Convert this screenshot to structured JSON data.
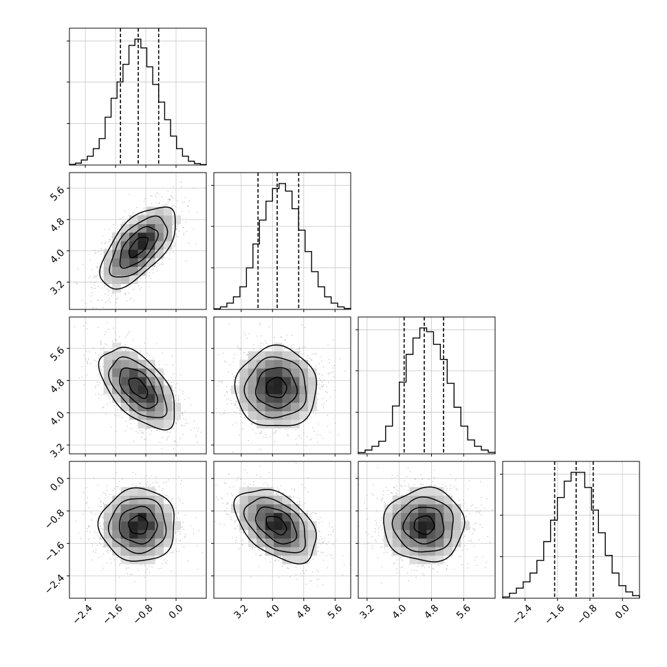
{
  "chart_data": {
    "type": "corner",
    "description": "Corner plot of a 4-parameter posterior sample: 1D histograms on the diagonal with dashed quantile lines, 2D scatter + binned density + contours below the diagonal.",
    "grid": true,
    "axis_labels": [
      "",
      "",
      "",
      ""
    ],
    "params": [
      {
        "ticks": [
          -2.4,
          -1.6,
          -0.8,
          0.0
        ],
        "range": [
          -2.82,
          0.8
        ],
        "quantiles": [
          -1.47,
          -1.0,
          -0.46
        ],
        "hist": [
          0.005,
          0.015,
          0.04,
          0.07,
          0.13,
          0.21,
          0.38,
          0.53,
          0.66,
          0.8,
          0.95,
          1.0,
          0.93,
          0.78,
          0.64,
          0.5,
          0.36,
          0.23,
          0.13,
          0.07,
          0.03,
          0.012,
          0.004
        ]
      },
      {
        "ticks": [
          3.2,
          4.0,
          4.8,
          5.6
        ],
        "range": [
          2.5,
          6.0
        ],
        "quantiles": [
          3.63,
          4.12,
          4.67
        ],
        "hist": [
          0.005,
          0.02,
          0.05,
          0.1,
          0.18,
          0.33,
          0.52,
          0.71,
          0.86,
          0.96,
          1.0,
          0.94,
          0.8,
          0.63,
          0.46,
          0.3,
          0.18,
          0.1,
          0.05,
          0.02,
          0.008
        ]
      },
      {
        "ticks": [
          3.2,
          4.0,
          4.8,
          5.6
        ],
        "range": [
          2.98,
          6.38
        ],
        "quantiles": [
          4.12,
          4.62,
          5.1
        ],
        "hist": [
          0.01,
          0.03,
          0.06,
          0.1,
          0.22,
          0.38,
          0.57,
          0.79,
          0.92,
          1.0,
          0.97,
          0.87,
          0.75,
          0.56,
          0.37,
          0.22,
          0.11,
          0.06,
          0.03,
          0.012
        ]
      },
      {
        "ticks": [
          -2.4,
          -1.6,
          -0.8,
          0.0
        ],
        "range": [
          -2.95,
          0.42
        ],
        "quantiles": [
          -1.67,
          -1.14,
          -0.72
        ],
        "hist": [
          0.01,
          0.04,
          0.08,
          0.13,
          0.2,
          0.3,
          0.45,
          0.62,
          0.8,
          0.93,
          1.0,
          1.0,
          0.88,
          0.7,
          0.52,
          0.34,
          0.2,
          0.1,
          0.05,
          0.02
        ]
      }
    ],
    "pairs": [
      {
        "x": 0,
        "y": 1,
        "mean": [
          -1.0,
          4.1
        ],
        "sd": [
          0.5,
          0.52
        ],
        "corr": 0.62
      },
      {
        "x": 0,
        "y": 2,
        "mean": [
          -1.0,
          4.62
        ],
        "sd": [
          0.5,
          0.5
        ],
        "corr": -0.55
      },
      {
        "x": 1,
        "y": 2,
        "mean": [
          4.1,
          4.62
        ],
        "sd": [
          0.52,
          0.5
        ],
        "corr": 0.0
      },
      {
        "x": 0,
        "y": 3,
        "mean": [
          -1.0,
          -1.15
        ],
        "sd": [
          0.5,
          0.45
        ],
        "corr": 0.0
      },
      {
        "x": 1,
        "y": 3,
        "mean": [
          4.1,
          -1.15
        ],
        "sd": [
          0.52,
          0.45
        ],
        "corr": -0.45
      },
      {
        "x": 2,
        "y": 3,
        "mean": [
          4.62,
          -1.15
        ],
        "sd": [
          0.5,
          0.45
        ],
        "corr": 0.0
      }
    ],
    "contour_levels_sigma": [
      0.5,
      1.0,
      1.5,
      2.0
    ]
  }
}
